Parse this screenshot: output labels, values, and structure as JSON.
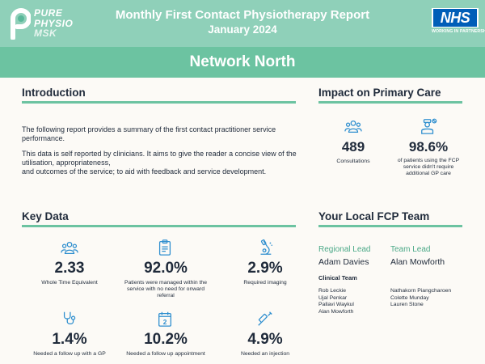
{
  "header": {
    "logo": {
      "line1": "PURE",
      "line2": "PHYSIO",
      "line3": "MSK"
    },
    "title": "Monthly First Contact Physiotherapy Report",
    "date": "January 2024",
    "nhs": {
      "logo_text": "NHS",
      "subtitle": "WORKING IN PARTNERSHIP"
    },
    "brand_color": "#8fd0b9"
  },
  "network": {
    "title": "Network North",
    "band_color": "#6cc3a1"
  },
  "introduction": {
    "title": "Introduction",
    "paragraph1_line1": "The following report provides a summary of the first contact practitioner service",
    "paragraph1_line2": "performance.",
    "paragraph2_line1": "This data is self reported by clinicians. It aims to give the reader a concise view of the",
    "paragraph2_line2": "utilisation, appropriateness,",
    "paragraph2_line3": "and outcomes of the service; to aid with feedback and service development."
  },
  "impact": {
    "title": "Impact on Primary Care",
    "stats": [
      {
        "icon": "people-group-icon",
        "value": "489",
        "caption_lines": [
          "Consultations"
        ]
      },
      {
        "icon": "doctor-icon",
        "value": "98.6%",
        "caption_lines": [
          "of patients using the FCP",
          "service didn't require",
          "additional GP care"
        ]
      }
    ]
  },
  "key_data": {
    "title": "Key Data",
    "stats": [
      {
        "icon": "people-group-icon",
        "value": "2.33",
        "caption_lines": [
          "Whole Time Equivalent"
        ]
      },
      {
        "icon": "clipboard-icon",
        "value": "92.0%",
        "caption_lines": [
          "Patients were managed within the",
          "service with no need for onward",
          "referral"
        ]
      },
      {
        "icon": "microscope-icon",
        "value": "2.9%",
        "caption_lines": [
          "Required imaging"
        ]
      },
      {
        "icon": "stethoscope-icon",
        "value": "1.4%",
        "caption_lines": [
          "Needed a follow up with a GP"
        ]
      },
      {
        "icon": "calendar-icon",
        "value": "10.2%",
        "caption_lines": [
          "Needed a follow up appointment"
        ]
      },
      {
        "icon": "syringe-icon",
        "value": "4.9%",
        "caption_lines": [
          "Needed an injection"
        ]
      }
    ]
  },
  "team": {
    "title": "Your Local FCP Team",
    "regional_lead_label": "Regional Lead",
    "regional_lead_name": "Adam Davies",
    "team_lead_label": "Team Lead",
    "team_lead_name": "Alan Mowforth",
    "clinical_team_label": "Clinical Team",
    "clinical_left": [
      "Rob Leckie",
      "Ujal Penkar",
      "Pallavi Waykul",
      "Alan Mowforth"
    ],
    "clinical_right": [
      "Nathakorn Piangcharoen",
      "Colette Munday",
      "Lauren Stone"
    ]
  },
  "colors": {
    "accent": "#6cc3a1",
    "icon_blue": "#2f8fcf",
    "text_dark": "#1f2a3a"
  }
}
